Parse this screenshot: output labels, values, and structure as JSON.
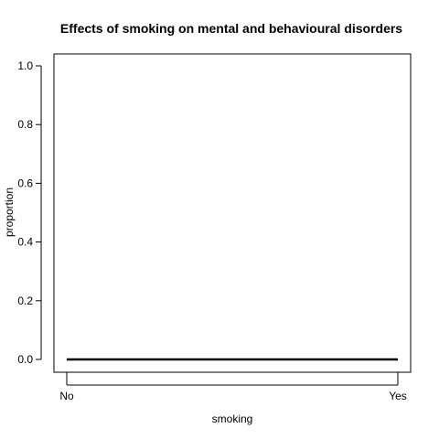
{
  "chart_data": {
    "type": "line",
    "title": "Effects of smoking on mental and behavioural disorders",
    "xlabel": "smoking",
    "ylabel": "proportion",
    "categories": [
      "No",
      "Yes"
    ],
    "series": [
      {
        "values": [
          0.0,
          0.0
        ],
        "color": "#000000"
      }
    ],
    "ylim": [
      0.0,
      1.0
    ],
    "yticks": [
      0.0,
      0.2,
      0.4,
      0.6,
      0.8,
      1.0
    ],
    "ytick_labels": [
      "0.0",
      "0.2",
      "0.4",
      "0.6",
      "0.8",
      "1.0"
    ],
    "grid": false,
    "legend": "none"
  }
}
